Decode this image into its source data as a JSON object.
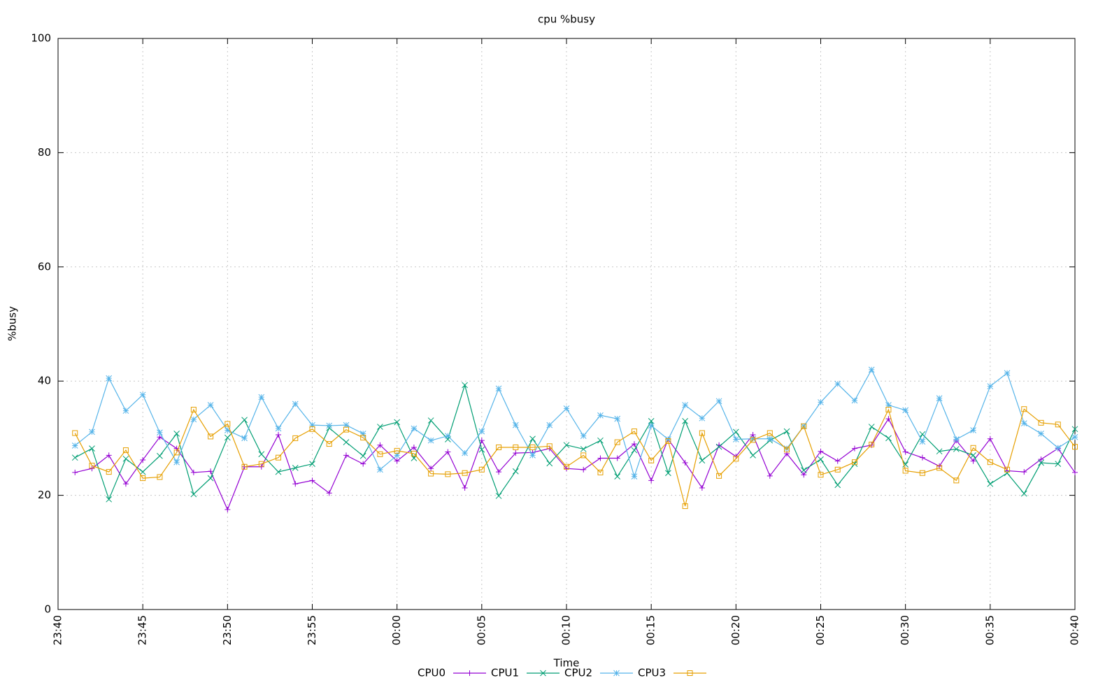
{
  "chart_data": {
    "type": "line",
    "title": "cpu %busy",
    "xlabel": "Time",
    "ylabel": "%busy",
    "x": [
      "23:41",
      "23:42",
      "23:43",
      "23:44",
      "23:45",
      "23:46",
      "23:47",
      "23:48",
      "23:49",
      "23:50",
      "23:51",
      "23:52",
      "23:53",
      "23:54",
      "23:55",
      "23:56",
      "23:57",
      "23:58",
      "23:59",
      "00:00",
      "00:01",
      "00:02",
      "00:03",
      "00:04",
      "00:05",
      "00:06",
      "00:07",
      "00:08",
      "00:09",
      "00:10",
      "00:11",
      "00:12",
      "00:13",
      "00:14",
      "00:15",
      "00:16",
      "00:17",
      "00:18",
      "00:19",
      "00:20",
      "00:21",
      "00:22",
      "00:23",
      "00:24",
      "00:25",
      "00:26",
      "00:27",
      "00:28",
      "00:29",
      "00:30",
      "00:31",
      "00:32",
      "00:33",
      "00:34",
      "00:35",
      "00:36",
      "00:37",
      "00:38",
      "00:39",
      "00:40"
    ],
    "series": [
      {
        "name": "CPU0",
        "color": "#9400d3",
        "marker": "plus",
        "values": [
          24.0,
          24.7,
          27.0,
          22.0,
          26.2,
          30.2,
          28.2,
          24.0,
          24.2,
          17.5,
          25.0,
          25.0,
          30.6,
          22.0,
          22.6,
          20.4,
          27.0,
          25.5,
          28.8,
          26.0,
          28.4,
          24.7,
          27.6,
          21.3,
          29.6,
          24.1,
          27.4,
          27.5,
          28.2,
          24.7,
          24.5,
          26.5,
          26.5,
          29.0,
          22.6,
          29.8,
          25.7,
          21.3,
          28.8,
          26.8,
          30.6,
          23.4,
          27.3,
          23.6,
          27.7,
          26.0,
          28.2,
          28.8,
          33.4,
          27.6,
          26.6,
          25.1,
          29.6,
          26.0,
          29.9,
          24.3,
          24.1,
          26.3,
          28.2,
          24.0
        ]
      },
      {
        "name": "CPU1",
        "color": "#009e73",
        "marker": "cross",
        "values": [
          26.6,
          28.2,
          19.3,
          26.4,
          24.1,
          26.9,
          30.8,
          20.2,
          23.0,
          30.1,
          33.2,
          27.2,
          24.1,
          24.8,
          25.5,
          31.8,
          29.3,
          26.9,
          32.0,
          32.8,
          26.5,
          33.1,
          29.8,
          39.3,
          28.0,
          19.9,
          24.2,
          29.9,
          25.6,
          28.8,
          28.1,
          29.6,
          23.3,
          27.9,
          33.0,
          23.9,
          33.0,
          26.1,
          28.5,
          31.1,
          27.0,
          29.6,
          31.2,
          24.4,
          26.3,
          21.8,
          25.5,
          32.0,
          30.0,
          25.4,
          30.7,
          27.7,
          28.1,
          27.0,
          22.0,
          23.9,
          20.3,
          25.7,
          25.5,
          31.6
        ]
      },
      {
        "name": "CPU2",
        "color": "#56b4e9",
        "marker": "star",
        "values": [
          28.7,
          31.1,
          40.5,
          34.8,
          37.6,
          31.0,
          25.8,
          33.3,
          35.8,
          31.4,
          30.0,
          37.2,
          31.7,
          36.0,
          32.3,
          32.2,
          32.3,
          30.8,
          24.5,
          27.0,
          31.7,
          29.6,
          30.4,
          27.4,
          31.2,
          38.7,
          32.3,
          27.0,
          32.3,
          35.2,
          30.4,
          34.0,
          33.4,
          23.3,
          32.2,
          29.8,
          35.8,
          33.5,
          36.5,
          29.8,
          29.9,
          29.9,
          28.2,
          32.1,
          36.3,
          39.5,
          36.6,
          42.0,
          35.8,
          34.9,
          29.4,
          37.0,
          29.8,
          31.4,
          39.1,
          41.4,
          32.6,
          30.8,
          28.3,
          30.2
        ]
      },
      {
        "name": "CPU3",
        "color": "#e69f00",
        "marker": "square",
        "values": [
          30.9,
          25.2,
          24.1,
          27.9,
          23.0,
          23.2,
          27.5,
          35.0,
          30.3,
          32.5,
          25.0,
          25.5,
          26.6,
          30.0,
          31.6,
          29.0,
          31.5,
          30.1,
          27.2,
          27.8,
          27.3,
          23.8,
          23.7,
          23.9,
          24.5,
          28.4,
          28.4,
          28.4,
          28.6,
          25.0,
          27.0,
          24.0,
          29.3,
          31.2,
          26.1,
          29.5,
          18.1,
          30.9,
          23.4,
          26.4,
          29.7,
          30.9,
          28.0,
          32.1,
          23.6,
          24.5,
          25.8,
          28.9,
          35.0,
          24.3,
          23.9,
          24.8,
          22.6,
          28.3,
          25.8,
          24.5,
          35.1,
          32.7,
          32.4,
          28.5
        ]
      }
    ],
    "xlim": [
      "23:40",
      "00:40"
    ],
    "xticks": [
      "23:40",
      "23:45",
      "23:50",
      "23:55",
      "00:00",
      "00:05",
      "00:10",
      "00:15",
      "00:20",
      "00:25",
      "00:30",
      "00:35",
      "00:40"
    ],
    "ylim": [
      0,
      100
    ],
    "yticks": [
      0,
      20,
      40,
      60,
      80,
      100
    ],
    "grid": true
  }
}
